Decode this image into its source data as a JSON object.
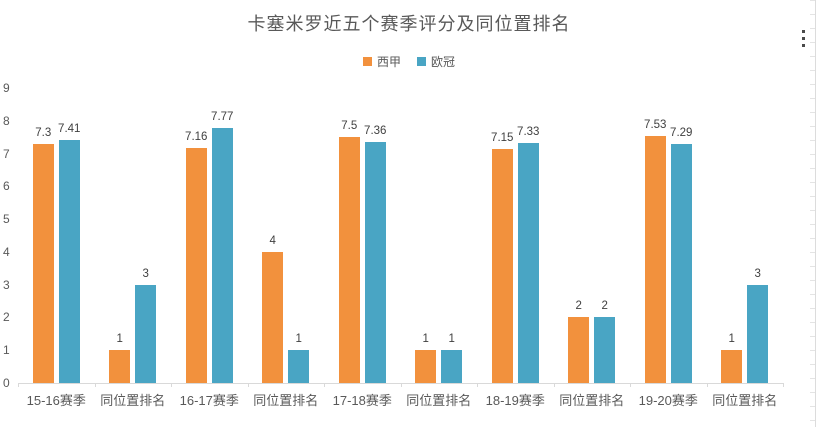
{
  "chart_data": {
    "type": "bar",
    "title": "卡塞米罗近五个赛季评分及同位置排名",
    "categories": [
      "15-16赛季",
      "同位置排名",
      "16-17赛季",
      "同位置排名",
      "17-18赛季",
      "同位置排名",
      "18-19赛季",
      "同位置排名",
      "19-20赛季",
      "同位置排名"
    ],
    "series": [
      {
        "name": "西甲",
        "color": "#F2913D",
        "values": [
          7.3,
          1,
          7.16,
          4,
          7.5,
          1,
          7.15,
          2,
          7.53,
          1
        ]
      },
      {
        "name": "欧冠",
        "color": "#49A5C4",
        "values": [
          7.41,
          3,
          7.77,
          1,
          7.36,
          1,
          7.33,
          2,
          7.29,
          3
        ]
      }
    ],
    "data_labels": [
      "7.3",
      "7.41",
      "1",
      "3",
      "7.16",
      "7.77",
      "4",
      "1",
      "7.5",
      "7.36",
      "1",
      "1",
      "7.15",
      "7.33",
      "2",
      "2",
      "7.53",
      "7.29",
      "1",
      "3"
    ],
    "y_axis": {
      "min": 0,
      "max": 9,
      "step": 1,
      "tick_labels": [
        "0",
        "1",
        "2",
        "3",
        "4",
        "5",
        "6",
        "7",
        "8",
        "9"
      ]
    },
    "legend_position": "top",
    "grid": false,
    "colors": {
      "title_text": "#595959",
      "axis_text": "#595959",
      "data_label_text": "#404040",
      "axis_line": "#d9d9d9"
    }
  }
}
